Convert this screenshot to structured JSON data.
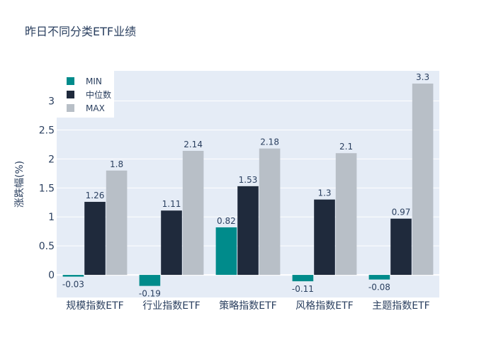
{
  "chart_data": {
    "type": "bar",
    "title": "昨日不同分类ETF业绩",
    "xlabel": "",
    "ylabel": "涨跌幅(%)",
    "categories": [
      "规模指数ETF",
      "行业指数ETF",
      "策略指数ETF",
      "风格指数ETF",
      "主题指数ETF"
    ],
    "series": [
      {
        "name": "MIN",
        "color": "#008b8b",
        "values": [
          -0.03,
          -0.19,
          0.82,
          -0.11,
          -0.08
        ],
        "labels": [
          "-0.03",
          "-0.19",
          "0.82",
          "-0.11",
          "-0.08"
        ]
      },
      {
        "name": "中位数",
        "color": "#1f2a3c",
        "values": [
          1.26,
          1.11,
          1.53,
          1.3,
          0.97
        ],
        "labels": [
          "1.26",
          "1.11",
          "1.53",
          "1.3",
          "0.97"
        ]
      },
      {
        "name": "MAX",
        "color": "#b8bfc7",
        "values": [
          1.8,
          2.14,
          2.18,
          2.1,
          3.3
        ],
        "labels": [
          "1.8",
          "2.14",
          "2.18",
          "2.1",
          "3.3"
        ]
      }
    ],
    "ylim": [
      -0.39,
      3.52
    ],
    "yticks": [
      0,
      0.5,
      1,
      1.5,
      2,
      2.5,
      3
    ],
    "ytick_labels": [
      "0",
      "0.5",
      "1",
      "1.5",
      "2",
      "2.5",
      "3"
    ],
    "grid": true,
    "legend_position": "top-left"
  }
}
